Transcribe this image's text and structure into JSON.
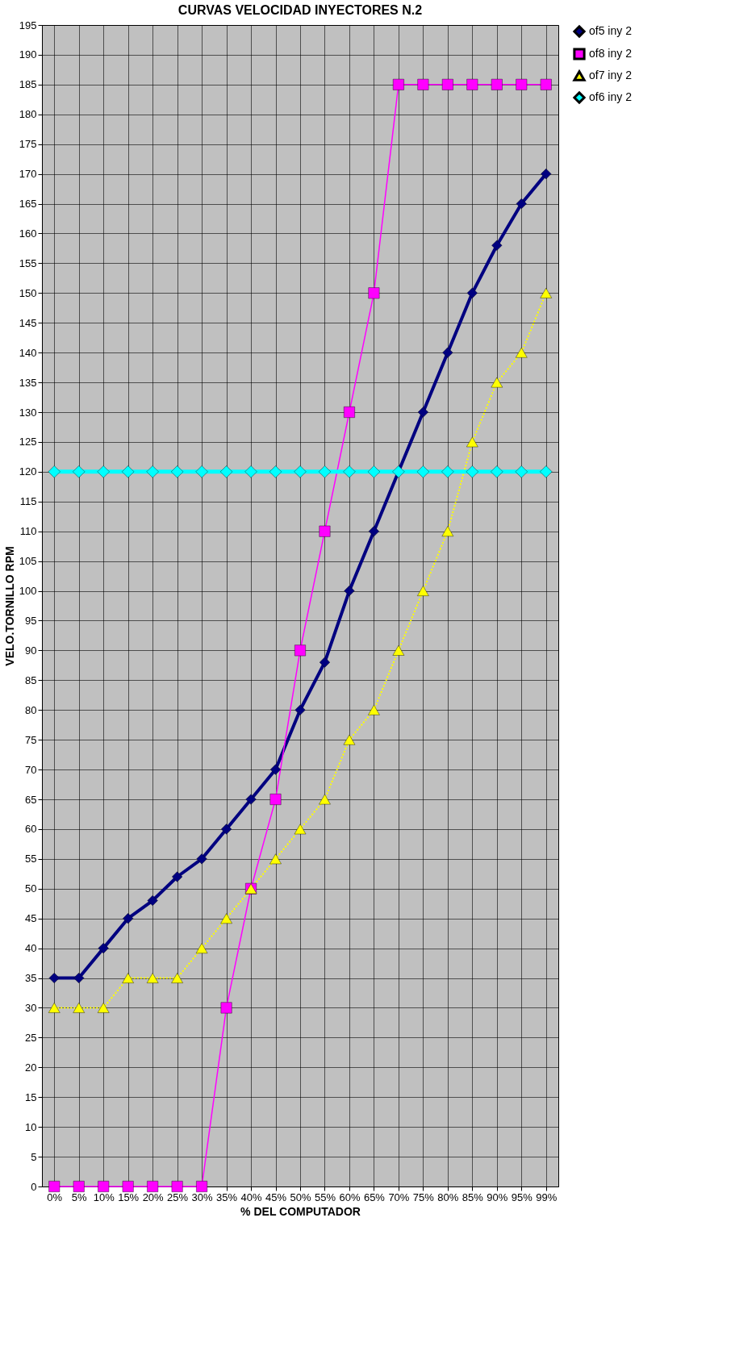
{
  "chart_data": {
    "type": "line",
    "title": "CURVAS VELOCIDAD INYECTORES N.2",
    "xlabel": "% DEL COMPUTADOR",
    "ylabel": "VELO.TORNILLO RPM",
    "categories": [
      "0%",
      "5%",
      "10%",
      "15%",
      "20%",
      "25%",
      "30%",
      "35%",
      "40%",
      "45%",
      "50%",
      "55%",
      "60%",
      "65%",
      "70%",
      "75%",
      "80%",
      "85%",
      "90%",
      "95%",
      "99%"
    ],
    "series": [
      {
        "name": "of5 iny 2",
        "color": "#000080",
        "marker": "diamond",
        "line_style": "solid",
        "values": [
          35,
          35,
          40,
          45,
          48,
          52,
          55,
          60,
          65,
          70,
          80,
          88,
          100,
          110,
          120,
          130,
          140,
          150,
          158,
          165,
          170
        ]
      },
      {
        "name": "of8 iny 2",
        "color": "#ff00ff",
        "marker": "square",
        "line_style": "solid",
        "values": [
          0,
          0,
          0,
          0,
          0,
          0,
          0,
          30,
          50,
          65,
          90,
          110,
          130,
          150,
          185,
          185,
          185,
          185,
          185,
          185,
          185
        ]
      },
      {
        "name": "of7 iny 2",
        "color": "#ffff00",
        "marker": "triangle",
        "line_style": "dotted",
        "values": [
          30,
          30,
          30,
          35,
          35,
          35,
          40,
          45,
          50,
          55,
          60,
          65,
          75,
          80,
          90,
          100,
          110,
          125,
          135,
          140,
          150
        ]
      },
      {
        "name": "of6 iny 2",
        "color": "#00ffff",
        "marker": "diamond",
        "line_style": "solid",
        "values": [
          120,
          120,
          120,
          120,
          120,
          120,
          120,
          120,
          120,
          120,
          120,
          120,
          120,
          120,
          120,
          120,
          120,
          120,
          120,
          120,
          120
        ]
      }
    ],
    "ylim": [
      0,
      195
    ],
    "yticks": [
      0,
      5,
      10,
      15,
      20,
      25,
      30,
      35,
      40,
      45,
      50,
      55,
      60,
      65,
      70,
      75,
      80,
      85,
      90,
      95,
      100,
      105,
      110,
      115,
      120,
      125,
      130,
      135,
      140,
      145,
      150,
      155,
      160,
      165,
      170,
      175,
      180,
      185,
      190,
      195
    ],
    "grid": true,
    "legend": "right"
  }
}
